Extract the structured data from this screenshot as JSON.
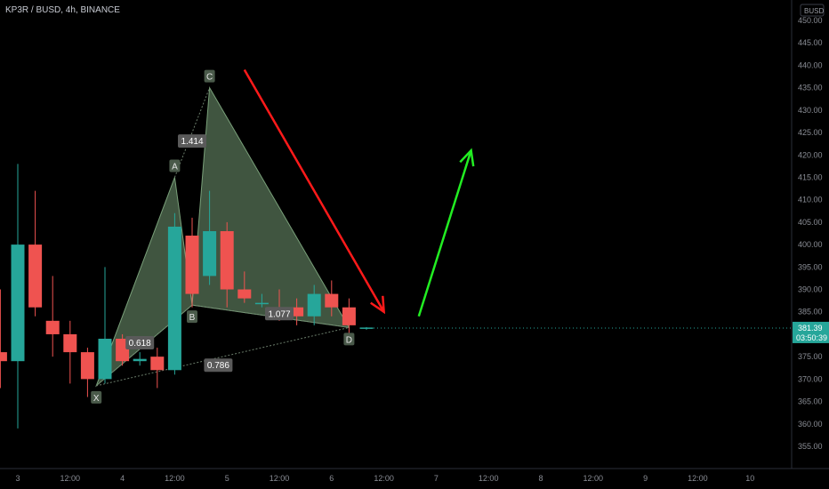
{
  "header": {
    "title": "KP3R / BUSD, 4h, BINANCE"
  },
  "price_axis": {
    "unit": "BUSD",
    "current_price": "381.39",
    "countdown": "03:50:39"
  },
  "chart_data": {
    "type": "candlestick",
    "ylim": [
      352,
      455
    ],
    "y_ticks": [
      355,
      360,
      365,
      370,
      375,
      380,
      385,
      390,
      395,
      400,
      405,
      410,
      415,
      420,
      425,
      430,
      435,
      440,
      445,
      450
    ],
    "x_ticks": [
      {
        "label": "3",
        "x": 0
      },
      {
        "label": "12:00",
        "x": 3
      },
      {
        "label": "4",
        "x": 6
      },
      {
        "label": "12:00",
        "x": 9
      },
      {
        "label": "5",
        "x": 12
      },
      {
        "label": "12:00",
        "x": 15
      },
      {
        "label": "6",
        "x": 18
      },
      {
        "label": "12:00",
        "x": 21
      },
      {
        "label": "7",
        "x": 24
      },
      {
        "label": "12:00",
        "x": 27
      },
      {
        "label": "8",
        "x": 30
      },
      {
        "label": "12:00",
        "x": 33
      },
      {
        "label": "9",
        "x": 36
      },
      {
        "label": "12:00",
        "x": 39
      },
      {
        "label": "10",
        "x": 42
      }
    ],
    "up_color": "#26a69a",
    "down_color": "#ef5350",
    "candles": [
      {
        "x": -1,
        "o": 376,
        "h": 390,
        "l": 368,
        "c": 374
      },
      {
        "x": 0,
        "o": 374,
        "h": 418,
        "l": 359,
        "c": 400
      },
      {
        "x": 1,
        "o": 400,
        "h": 412,
        "l": 384,
        "c": 386
      },
      {
        "x": 2,
        "o": 383,
        "h": 393,
        "l": 375,
        "c": 380
      },
      {
        "x": 3,
        "o": 380,
        "h": 383,
        "l": 369,
        "c": 376
      },
      {
        "x": 4,
        "o": 376,
        "h": 377,
        "l": 366,
        "c": 370
      },
      {
        "x": 5,
        "o": 370,
        "h": 395,
        "l": 369,
        "c": 379
      },
      {
        "x": 6,
        "o": 379,
        "h": 380,
        "l": 373,
        "c": 374
      },
      {
        "x": 7,
        "o": 374,
        "h": 376,
        "l": 373,
        "c": 374.5
      },
      {
        "x": 8,
        "o": 375,
        "h": 377,
        "l": 368,
        "c": 372
      },
      {
        "x": 9,
        "o": 372,
        "h": 407,
        "l": 371,
        "c": 404
      },
      {
        "x": 10,
        "o": 402,
        "h": 406,
        "l": 386,
        "c": 389
      },
      {
        "x": 11,
        "o": 393,
        "h": 412,
        "l": 391,
        "c": 403
      },
      {
        "x": 12,
        "o": 403,
        "h": 405,
        "l": 386,
        "c": 390
      },
      {
        "x": 13,
        "o": 390,
        "h": 394,
        "l": 387,
        "c": 388
      },
      {
        "x": 14,
        "o": 387,
        "h": 389,
        "l": 386,
        "c": 387
      },
      {
        "x": 15,
        "o": 386,
        "h": 390,
        "l": 383,
        "c": 385
      },
      {
        "x": 16,
        "o": 386,
        "h": 388,
        "l": 382,
        "c": 384
      },
      {
        "x": 17,
        "o": 384,
        "h": 391,
        "l": 382,
        "c": 389
      },
      {
        "x": 18,
        "o": 389,
        "h": 392,
        "l": 384,
        "c": 386
      },
      {
        "x": 19,
        "o": 386,
        "h": 388,
        "l": 380,
        "c": 382
      },
      {
        "x": 20,
        "o": 381.2,
        "h": 381.6,
        "l": 381,
        "c": 381.5
      }
    ],
    "pattern": {
      "points": [
        {
          "label": "X",
          "x": 4.5,
          "y": 368.5
        },
        {
          "label": "A",
          "x": 9.0,
          "y": 415
        },
        {
          "label": "B",
          "x": 10.0,
          "y": 386.5
        },
        {
          "label": "C",
          "x": 11.0,
          "y": 435
        },
        {
          "label": "D",
          "x": 19.0,
          "y": 381.5
        }
      ],
      "ratios": [
        {
          "label": "0.618",
          "x": 7.0,
          "y": 378
        },
        {
          "label": "0.786",
          "x": 11.5,
          "y": 373
        },
        {
          "label": "1.414",
          "x": 10.0,
          "y": 423
        },
        {
          "label": "1.077",
          "x": 15.0,
          "y": 384.5
        }
      ],
      "fill_color": "#8fbc8f"
    },
    "arrows": [
      {
        "name": "down-arrow",
        "color": "#ff1a1a",
        "x1": 13.0,
        "y1": 439,
        "x2": 21.0,
        "y2": 385
      },
      {
        "name": "up-arrow",
        "color": "#22ee22",
        "x1": 23.0,
        "y1": 384,
        "x2": 26.0,
        "y2": 421
      }
    ]
  }
}
